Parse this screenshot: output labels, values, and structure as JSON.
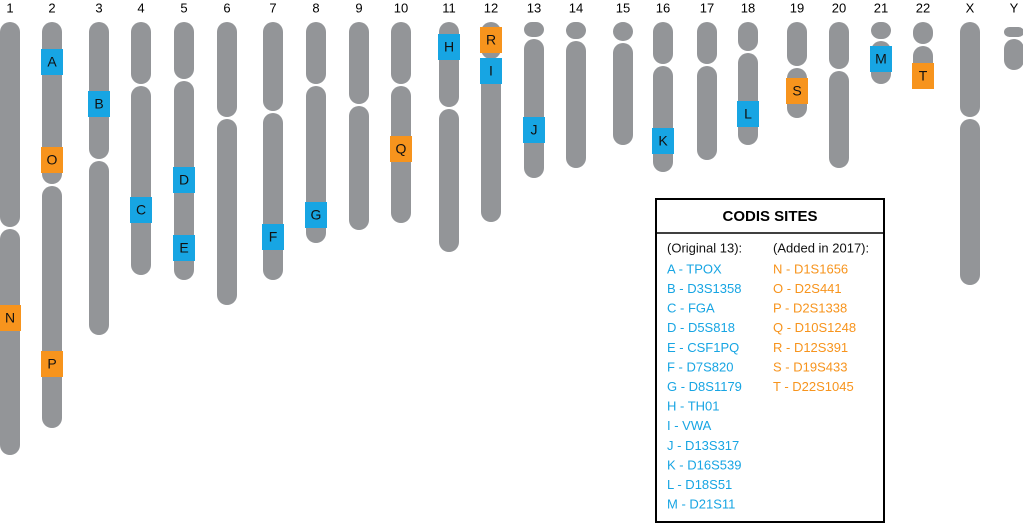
{
  "chromosomes": [
    "1",
    "2",
    "3",
    "4",
    "5",
    "6",
    "7",
    "8",
    "9",
    "10",
    "11",
    "12",
    "13",
    "14",
    "15",
    "16",
    "17",
    "18",
    "19",
    "20",
    "21",
    "22",
    "X",
    "Y"
  ],
  "markers": [
    "A",
    "O",
    "N",
    "P",
    "B",
    "C",
    "D",
    "E",
    "F",
    "G",
    "Q",
    "H",
    "R",
    "I",
    "J",
    "K",
    "L",
    "S",
    "M",
    "T"
  ],
  "legend": {
    "title": "CODIS SITES",
    "original": {
      "header": "(Original 13):",
      "items": [
        "A - TPOX",
        "B - D3S1358",
        "C - FGA",
        "D - D5S818",
        "E - CSF1PQ",
        "F - D7S820",
        "G - D8S1179",
        "H - TH01",
        "I - VWA",
        "J - D13S317",
        "K - D16S539",
        "L - D18S51",
        "M - D21S11"
      ]
    },
    "added": {
      "header": "(Added in 2017):",
      "items": [
        "N - D1S1656",
        "O - D2S441",
        "P - D2S1338",
        "Q - D10S1248",
        "R - D12S391",
        "S - D19S433",
        "T - D22S1045"
      ]
    }
  }
}
